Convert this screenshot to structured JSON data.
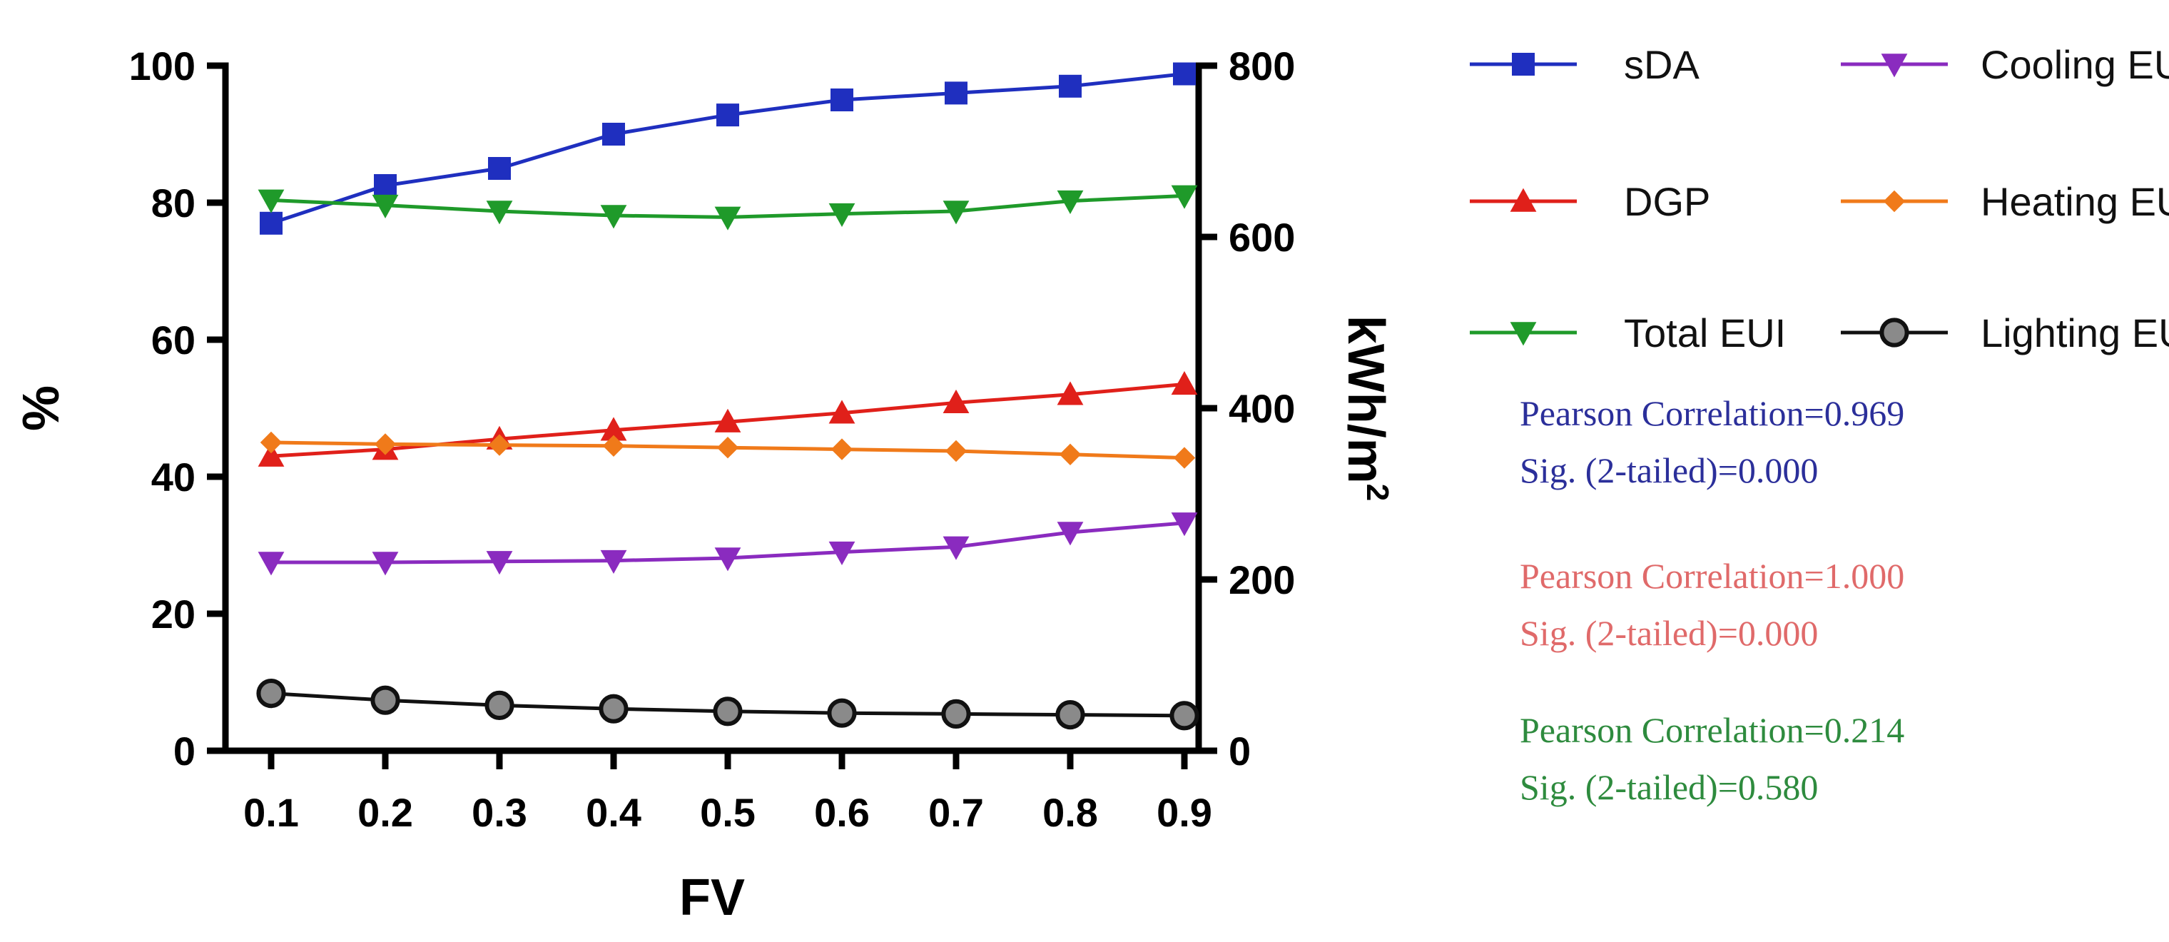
{
  "chart_data": {
    "type": "line",
    "xlabel": "FV",
    "ylabel": "%",
    "y2label": "kWh/m",
    "y2label_sup": "2",
    "x": [
      0.1,
      0.2,
      0.3,
      0.4,
      0.5,
      0.6,
      0.7,
      0.8,
      0.9
    ],
    "x_ticks": [
      "0.1",
      "0.2",
      "0.3",
      "0.4",
      "0.5",
      "0.6",
      "0.7",
      "0.8",
      "0.9"
    ],
    "ylim": [
      0,
      100
    ],
    "y_ticks": [
      "0",
      "20",
      "40",
      "60",
      "80",
      "100"
    ],
    "y2lim": [
      0,
      800
    ],
    "y2_ticks": [
      "0",
      "200",
      "400",
      "600",
      "800"
    ],
    "legend_placement": "right",
    "series": [
      {
        "name": "sDA",
        "axis": "left",
        "color": "#1f2fbf",
        "marker": "square",
        "values": [
          77,
          82.5,
          85,
          90,
          92.8,
          95,
          96,
          97,
          98.8
        ]
      },
      {
        "name": "DGP",
        "axis": "left",
        "color": "#e0201a",
        "marker": "triangle-up",
        "values": [
          43,
          44,
          45.5,
          46.8,
          48,
          49.3,
          50.8,
          52,
          53.5
        ]
      },
      {
        "name": "Total EUI",
        "axis": "right",
        "color": "#1f9a2a",
        "marker": "triangle-down",
        "values": [
          643,
          637,
          630,
          625,
          623,
          627,
          630,
          642,
          648
        ]
      },
      {
        "name": "Cooling EUI",
        "axis": "right",
        "color": "#8a2bbf",
        "marker": "triangle-down",
        "values": [
          220,
          220,
          221,
          222,
          225,
          232,
          238,
          255,
          266
        ]
      },
      {
        "name": "Heating EUI",
        "axis": "right",
        "color": "#f07a1a",
        "marker": "diamond",
        "values": [
          360,
          358,
          357,
          356,
          354,
          352,
          350,
          346,
          342
        ]
      },
      {
        "name": "Lighting EUI",
        "axis": "right",
        "color": "#111111",
        "marker": "circle",
        "values": [
          67,
          59,
          53,
          49,
          46,
          44,
          43,
          42,
          41
        ]
      }
    ],
    "annotations": [
      {
        "line1": "Pearson Correlation=0.969",
        "line2": "Sig. (2-tailed)=0.000",
        "color": "#2b2f9a"
      },
      {
        "line1": "Pearson Correlation=1.000",
        "line2": "Sig. (2-tailed)=0.000",
        "color": "#e06a6a"
      },
      {
        "line1": "Pearson Correlation=0.214",
        "line2": "Sig. (2-tailed)=0.580",
        "color": "#2e8b3e"
      }
    ]
  }
}
